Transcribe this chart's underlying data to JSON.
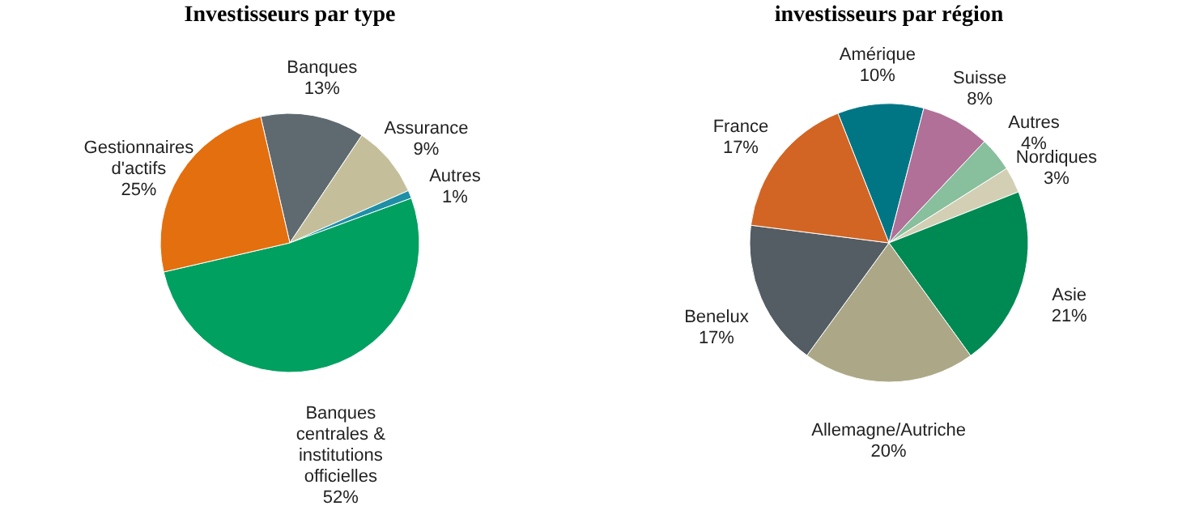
{
  "chart_data": [
    {
      "type": "pie",
      "title": "Investisseurs par type",
      "categories": [
        "Banques",
        "Assurance",
        "Autres",
        "Banques centrales & institutions officielles",
        "Gestionnaires d'actifs"
      ],
      "values": [
        13,
        9,
        1,
        52,
        25
      ],
      "value_labels": [
        "13%",
        "9%",
        "1%",
        "52%",
        "25%"
      ],
      "colors": [
        "#5f6a70",
        "#c4bf9a",
        "#1f8fa8",
        "#00a060",
        "#e46f0e"
      ]
    },
    {
      "type": "pie",
      "title": "investisseurs par région",
      "categories": [
        "Amérique",
        "Suisse",
        "Autres",
        "Nordiques",
        "Asie",
        "Allemagne/Autriche",
        "Benelux",
        "France"
      ],
      "values": [
        10,
        8,
        4,
        3,
        21,
        20,
        17,
        17
      ],
      "value_labels": [
        "10%",
        "8%",
        "4%",
        "3%",
        "21%",
        "20%",
        "17%",
        "17%"
      ],
      "colors": [
        "#007685",
        "#b07098",
        "#88bf9d",
        "#d3cfb5",
        "#008a53",
        "#aca887",
        "#535d63",
        "#d26524"
      ]
    }
  ]
}
